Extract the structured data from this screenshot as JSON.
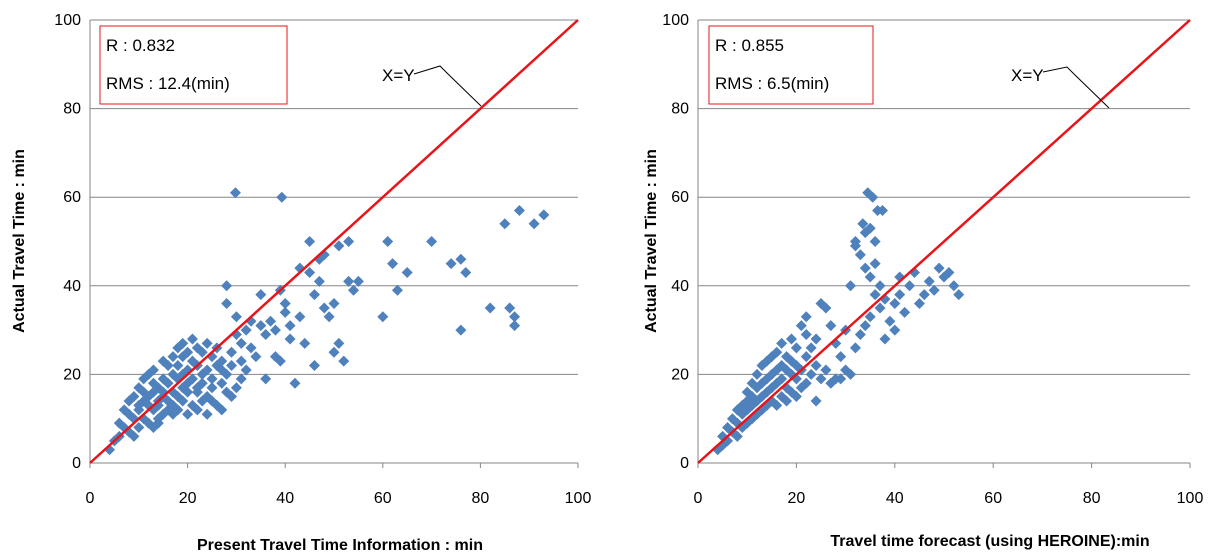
{
  "colors": {
    "points": "#4F81BD",
    "ref_line": "#E8141A",
    "stat_box": "#E8141A",
    "grid": "#868686"
  },
  "chart_data": [
    {
      "type": "scatter",
      "xlabel": "Present Travel Time Information : min",
      "ylabel": "Actual Travel Time : min",
      "xlim": [
        0,
        100
      ],
      "ylim": [
        0,
        100
      ],
      "xticks": [
        "0",
        "20",
        "40",
        "60",
        "80",
        "100"
      ],
      "yticks": [
        "0",
        "20",
        "40",
        "60",
        "80",
        "100"
      ],
      "grid": "horizontal",
      "stats": {
        "r": "R : 0.832",
        "rms": "RMS : 12.4(min)"
      },
      "reference_line": {
        "label": "X=Y",
        "slope": 1,
        "intercept": 0
      },
      "marker": "diamond",
      "series": [
        {
          "x": [
            4,
            5,
            6,
            6,
            7,
            7,
            8,
            8,
            8,
            9,
            9,
            9,
            10,
            10,
            10,
            10,
            11,
            11,
            11,
            11,
            12,
            12,
            12,
            12,
            13,
            13,
            13,
            13,
            13,
            14,
            14,
            14,
            14,
            14,
            15,
            15,
            15,
            15,
            15,
            16,
            16,
            16,
            16,
            17,
            17,
            17,
            17,
            17,
            18,
            18,
            18,
            18,
            18,
            19,
            19,
            19,
            19,
            19,
            20,
            20,
            20,
            20,
            20,
            21,
            21,
            21,
            21,
            22,
            22,
            22,
            22,
            22,
            23,
            23,
            23,
            23,
            24,
            24,
            24,
            24,
            25,
            25,
            25,
            25,
            26,
            26,
            26,
            27,
            27,
            27,
            27,
            28,
            28,
            28,
            28,
            29,
            29,
            29,
            30,
            30,
            30,
            31,
            31,
            31,
            32,
            32,
            33,
            33,
            34,
            35,
            35,
            36,
            36,
            37,
            38,
            38,
            39,
            39,
            40,
            40,
            41,
            41,
            42,
            43,
            43,
            44,
            45,
            45,
            46,
            46,
            47,
            47,
            48,
            48,
            49,
            50,
            50,
            51,
            51,
            52,
            53,
            53,
            54,
            55,
            60,
            61,
            62,
            63,
            65,
            70,
            74,
            76,
            76,
            77,
            82,
            85,
            86,
            87,
            87,
            88,
            91,
            93,
            29.8,
            39.3
          ],
          "y": [
            3,
            5,
            6,
            9,
            8,
            12,
            7,
            11,
            14,
            6,
            10,
            15,
            8,
            12,
            13,
            17,
            10,
            14,
            16,
            19,
            9,
            13,
            15,
            20,
            8,
            12,
            16,
            18,
            21,
            10,
            14,
            17,
            13,
            9,
            11,
            15,
            19,
            23,
            16,
            12,
            18,
            22,
            14,
            11,
            16,
            20,
            24,
            13,
            15,
            19,
            22,
            26,
            12,
            14,
            17,
            20,
            27,
            24,
            11,
            16,
            21,
            25,
            18,
            13,
            19,
            23,
            28,
            12,
            17,
            22,
            26,
            16,
            14,
            20,
            25,
            18,
            11,
            15,
            21,
            27,
            14,
            19,
            24,
            17,
            13,
            22,
            26,
            18,
            21,
            23,
            12,
            16,
            20,
            36,
            40,
            15,
            22,
            25,
            17,
            29,
            33,
            19,
            23,
            27,
            21,
            30,
            26,
            32,
            24,
            31,
            38,
            29,
            19,
            32,
            30,
            24,
            39,
            23,
            34,
            36,
            28,
            31,
            18,
            33,
            44,
            27,
            43,
            50,
            22,
            38,
            41,
            46,
            35,
            47,
            33,
            25,
            36,
            27,
            49,
            23,
            41,
            50,
            39,
            41,
            33,
            50,
            45,
            39,
            43,
            50,
            45,
            46,
            30,
            43,
            35,
            54,
            35,
            33,
            31,
            57,
            54,
            56,
            61,
            60
          ]
        }
      ]
    },
    {
      "type": "scatter",
      "xlabel": "Travel time forecast (using HEROINE):min",
      "ylabel": "Actual Travel Time : min",
      "xlim": [
        0,
        100
      ],
      "ylim": [
        0,
        100
      ],
      "xticks": [
        "0",
        "20",
        "40",
        "60",
        "80",
        "100"
      ],
      "yticks": [
        "0",
        "20",
        "40",
        "60",
        "80",
        "100"
      ],
      "grid": "horizontal",
      "stats": {
        "r": "R : 0.855",
        "rms": "RMS : 6.5(min)"
      },
      "reference_line": {
        "label": "X=Y",
        "slope": 1,
        "intercept": 0
      },
      "marker": "diamond",
      "series": [
        {
          "x": [
            4,
            5,
            5,
            6,
            6,
            7,
            7,
            8,
            8,
            8,
            9,
            9,
            9,
            10,
            10,
            10,
            10,
            11,
            11,
            11,
            11,
            12,
            12,
            12,
            12,
            13,
            13,
            13,
            13,
            14,
            14,
            14,
            14,
            15,
            15,
            15,
            15,
            16,
            16,
            16,
            16,
            17,
            17,
            17,
            17,
            18,
            18,
            18,
            18,
            19,
            19,
            19,
            19,
            20,
            20,
            20,
            20,
            21,
            21,
            21,
            22,
            22,
            22,
            22,
            23,
            23,
            24,
            24,
            24,
            25,
            25,
            26,
            26,
            27,
            27,
            28,
            28,
            29,
            29,
            30,
            30,
            31,
            31,
            32,
            32,
            33,
            33,
            34,
            34,
            35,
            35,
            35,
            36,
            36,
            37,
            37,
            38,
            38,
            39,
            40,
            40,
            41,
            41,
            42,
            43,
            44,
            45,
            46,
            47,
            48,
            49,
            50,
            51,
            52,
            53,
            34.5,
            35.5,
            36.5,
            32,
            33.5,
            37.5,
            34,
            36
          ],
          "y": [
            3,
            4,
            6,
            5,
            8,
            7,
            10,
            6,
            9,
            12,
            8,
            11,
            13,
            9,
            12,
            14,
            16,
            10,
            13,
            15,
            18,
            11,
            14,
            17,
            20,
            12,
            15,
            18,
            22,
            13,
            16,
            19,
            23,
            14,
            17,
            20,
            24,
            13,
            18,
            21,
            25,
            15,
            19,
            22,
            27,
            14,
            17,
            21,
            24,
            16,
            20,
            23,
            28,
            15,
            19,
            22,
            26,
            17,
            21,
            31,
            18,
            24,
            29,
            33,
            20,
            26,
            14,
            22,
            28,
            19,
            36,
            21,
            35,
            18,
            31,
            19,
            27,
            19,
            24,
            21,
            30,
            20,
            40,
            26,
            50,
            29,
            47,
            31,
            44,
            33,
            42,
            53,
            38,
            45,
            35,
            40,
            28,
            37,
            32,
            36,
            30,
            38,
            42,
            34,
            40,
            43,
            36,
            38,
            41,
            39,
            44,
            42,
            43,
            40,
            38,
            61,
            60,
            57,
            49,
            54,
            57,
            52,
            50
          ]
        }
      ]
    }
  ]
}
